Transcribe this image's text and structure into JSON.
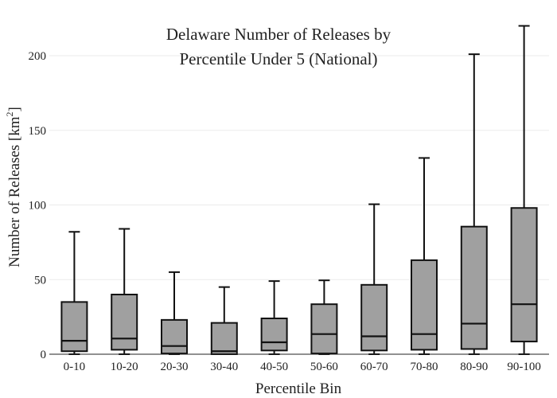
{
  "chart_data": {
    "type": "box",
    "title_lines": [
      "Delaware Number of Releases by",
      "Percentile Under 5 (National)"
    ],
    "xlabel": "Percentile Bin",
    "ylabel_main": "Number of Releases  [km",
    "ylabel_sup": "2",
    "ylabel_end": "]",
    "ylim": [
      0,
      230
    ],
    "yticks": [
      0,
      50,
      100,
      150,
      200
    ],
    "grid": true,
    "categories": [
      "0-10",
      "10-20",
      "20-30",
      "30-40",
      "40-50",
      "50-60",
      "60-70",
      "70-80",
      "80-90",
      "90-100"
    ],
    "boxes": [
      {
        "min": 0,
        "q1": 2,
        "median": 9,
        "q3": 35,
        "max": 82
      },
      {
        "min": 0,
        "q1": 3,
        "median": 10.5,
        "q3": 40,
        "max": 84
      },
      {
        "min": 0,
        "q1": 0.5,
        "median": 5.5,
        "q3": 23,
        "max": 55
      },
      {
        "min": 0,
        "q1": 0,
        "median": 2,
        "q3": 21,
        "max": 45
      },
      {
        "min": 0,
        "q1": 2.5,
        "median": 8,
        "q3": 24,
        "max": 49
      },
      {
        "min": 0,
        "q1": 0.5,
        "median": 13.5,
        "q3": 33.5,
        "max": 49.5
      },
      {
        "min": 0,
        "q1": 2.5,
        "median": 12,
        "q3": 46.5,
        "max": 100.5
      },
      {
        "min": 0,
        "q1": 3,
        "median": 13.5,
        "q3": 63,
        "max": 131.5
      },
      {
        "min": 0,
        "q1": 3.5,
        "median": 20.5,
        "q3": 85.5,
        "max": 201
      },
      {
        "min": 0,
        "q1": 8.5,
        "median": 33.5,
        "q3": 98,
        "max": 220
      }
    ],
    "colors": {
      "box_fill": "#a0a0a0",
      "stroke": "#111111",
      "grid": "#ebebeb"
    }
  }
}
